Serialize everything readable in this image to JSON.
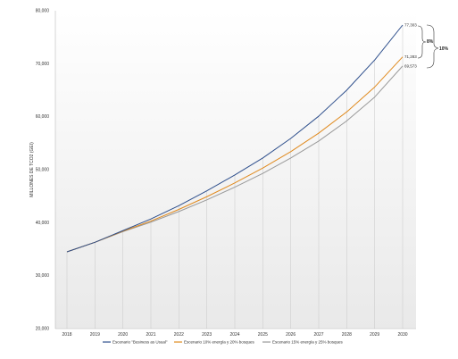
{
  "chart_data": {
    "type": "line",
    "ylabel": "MILLONES DE TCO2 (GEI)",
    "x": [
      "2018",
      "2019",
      "2020",
      "2021",
      "2022",
      "2023",
      "2024",
      "2025",
      "2026",
      "2027",
      "2028",
      "2029",
      "2030"
    ],
    "ylim": [
      20000,
      80000
    ],
    "yticks": [
      "20,000",
      "30,000",
      "40,000",
      "50,000",
      "60,000",
      "70,000",
      "80,000"
    ],
    "series": [
      {
        "name": "Escenario \"Business as Usual\"",
        "color": "#2e4f8c",
        "values": [
          34500,
          36300,
          38500,
          40700,
          43200,
          46000,
          49000,
          52200,
          55900,
          60100,
          65000,
          70700,
          77303
        ]
      },
      {
        "name": "Escenario 10% energía y 20% bosques",
        "color": "#e08a1e",
        "values": [
          34500,
          36300,
          38400,
          40300,
          42500,
          44900,
          47500,
          50300,
          53400,
          56900,
          60900,
          65600,
          71283
        ]
      },
      {
        "name": "Escenario 15% energía y 25% bosques",
        "color": "#9a9a9a",
        "values": [
          34500,
          36300,
          38300,
          40100,
          42100,
          44300,
          46700,
          49300,
          52200,
          55400,
          59200,
          63700,
          69573
        ]
      }
    ],
    "end_labels": [
      "77,303",
      "71,283",
      "69,573"
    ],
    "annotations": [
      "8%",
      "10%"
    ],
    "grid": "vertical",
    "legend": "bottom"
  }
}
